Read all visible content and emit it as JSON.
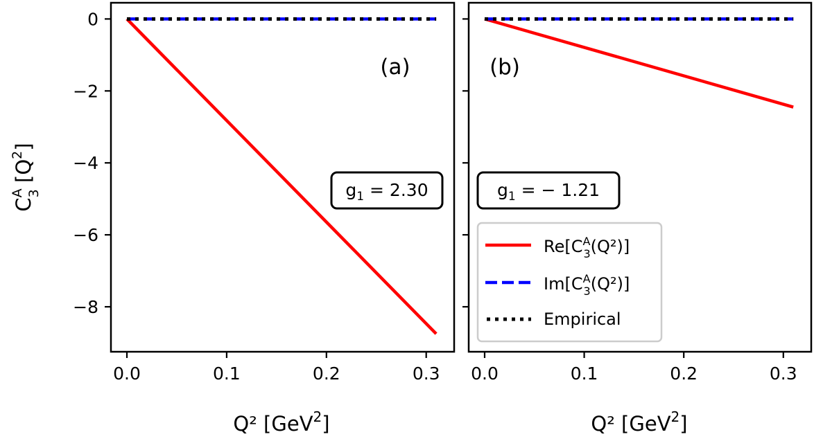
{
  "chart_data": [
    {
      "type": "line",
      "panel_label": "(a)",
      "xlabel": "Q² [GeV",
      "xlabel_sup": "2",
      "xlabel_end": "]",
      "ylabel": "C",
      "ylabel_sup": "A",
      "ylabel_sub": "3",
      "ylabel_end": " [Q",
      "ylabel_sup2": "2",
      "ylabel_close": "]",
      "xlim": [
        -0.016,
        0.328
      ],
      "ylim": [
        -9.25,
        0.45
      ],
      "xticks": [
        "0.0",
        "0.1",
        "0.2",
        "0.3"
      ],
      "xtick_values": [
        0.0,
        0.1,
        0.2,
        0.3
      ],
      "yticks": [
        "0",
        "−2",
        "−4",
        "−6",
        "−8"
      ],
      "ytick_values": [
        0,
        -2,
        -4,
        -6,
        -8
      ],
      "grid": false,
      "annotation": {
        "pre": "g",
        "sub": "1",
        "post": " = 2.30"
      },
      "series": [
        {
          "key": "re",
          "color": "#ff0000",
          "style": "solid",
          "x": [
            0.0,
            0.31
          ],
          "y": [
            0.0,
            -8.75
          ]
        },
        {
          "key": "im",
          "color": "#0000ff",
          "style": "dashed",
          "x": [
            0.0,
            0.31
          ],
          "y": [
            0.0,
            0.0
          ]
        },
        {
          "key": "emp",
          "color": "#000000",
          "style": "dotted",
          "x": [
            0.0,
            0.31
          ],
          "y": [
            0.0,
            0.0
          ]
        }
      ]
    },
    {
      "type": "line",
      "panel_label": "(b)",
      "xlabel": "Q² [GeV",
      "xlabel_sup": "2",
      "xlabel_end": "]",
      "xlim": [
        -0.016,
        0.328
      ],
      "ylim": [
        -9.25,
        0.45
      ],
      "xticks": [
        "0.0",
        "0.1",
        "0.2",
        "0.3"
      ],
      "xtick_values": [
        0.0,
        0.1,
        0.2,
        0.3
      ],
      "grid": false,
      "annotation": {
        "pre": "g",
        "sub": "1",
        "post": " = − 1.21"
      },
      "legend_position": "lower-left",
      "legend": [
        {
          "label": "Re[C",
          "sup": "A",
          "sub": "3",
          "end": "(Q²)]",
          "color": "#ff0000",
          "style": "solid"
        },
        {
          "label": "Im[C",
          "sup": "A",
          "sub": "3",
          "end": "(Q²)]",
          "color": "#0000ff",
          "style": "dashed"
        },
        {
          "label": "Empirical",
          "color": "#000000",
          "style": "dotted"
        }
      ],
      "series": [
        {
          "key": "re",
          "color": "#ff0000",
          "style": "solid",
          "x": [
            0.0,
            0.31
          ],
          "y": [
            0.0,
            -2.45
          ]
        },
        {
          "key": "im",
          "color": "#0000ff",
          "style": "dashed",
          "x": [
            0.0,
            0.31
          ],
          "y": [
            0.0,
            0.0
          ]
        },
        {
          "key": "emp",
          "color": "#000000",
          "style": "dotted",
          "x": [
            0.0,
            0.31
          ],
          "y": [
            0.0,
            0.0
          ]
        }
      ]
    }
  ]
}
